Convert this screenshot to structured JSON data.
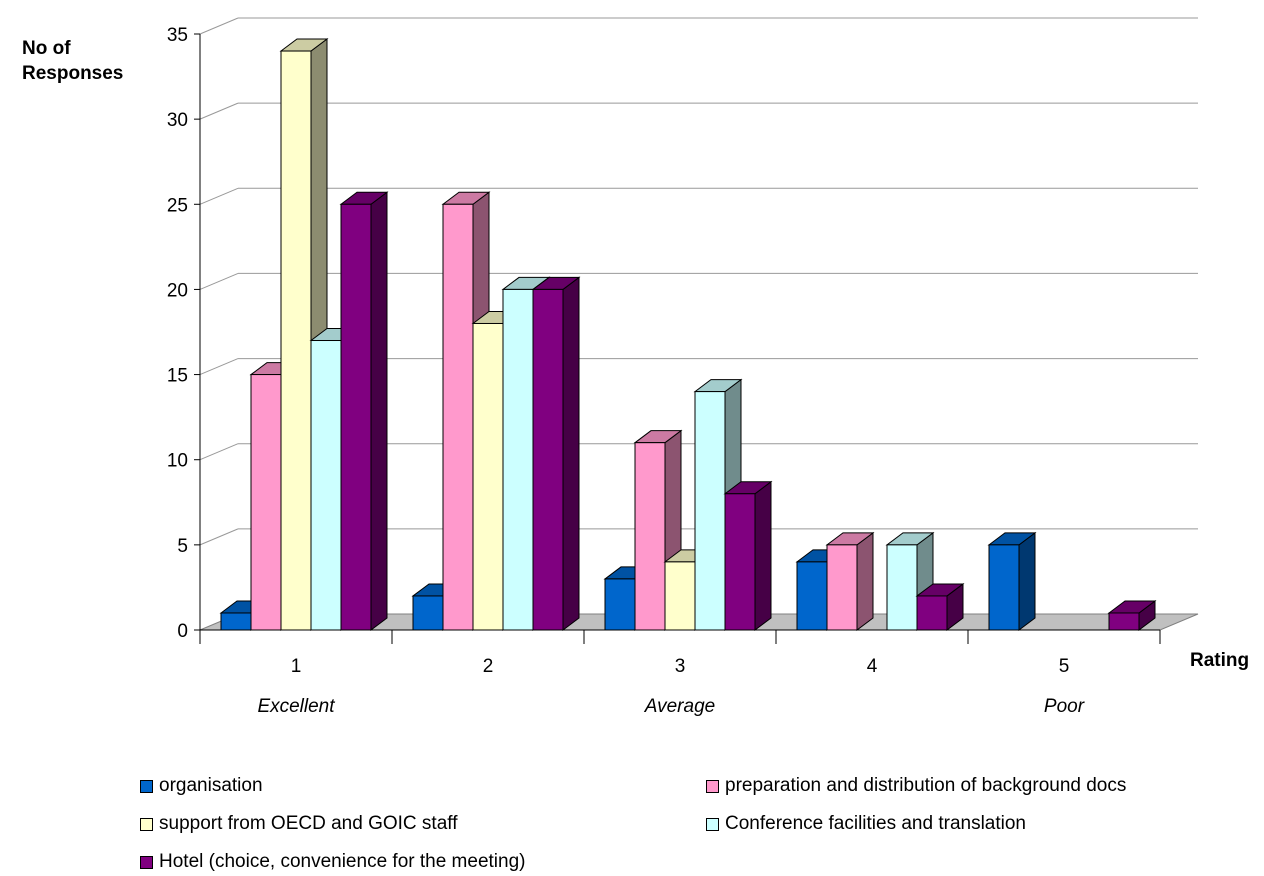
{
  "chart_data": {
    "type": "bar",
    "ylabel_line1": "No of",
    "ylabel_line2": "Responses",
    "xlabel": "Rating",
    "categories": [
      "1",
      "2",
      "3",
      "4",
      "5"
    ],
    "category_notes": [
      "Excellent",
      "",
      "Average",
      "",
      "Poor"
    ],
    "ylim": [
      0,
      35
    ],
    "yticks": [
      0,
      5,
      10,
      15,
      20,
      25,
      30,
      35
    ],
    "grid": true,
    "legend_position": "bottom",
    "series": [
      {
        "name": "organisation",
        "color": "#0066CC",
        "values": [
          1,
          2,
          3,
          4,
          5
        ]
      },
      {
        "name": "preparation and distribution of background docs",
        "color": "#FF99CC",
        "values": [
          15,
          25,
          11,
          5,
          0
        ]
      },
      {
        "name": "support from OECD and GOIC staff",
        "color": "#FFFFCC",
        "values": [
          34,
          18,
          4,
          0,
          0
        ]
      },
      {
        "name": "Conference facilities and translation",
        "color": "#CCFFFF",
        "values": [
          17,
          20,
          14,
          5,
          0
        ]
      },
      {
        "name": "Hotel (choice, convenience for the meeting)",
        "color": "#800080",
        "values": [
          25,
          20,
          8,
          2,
          1
        ]
      }
    ]
  }
}
